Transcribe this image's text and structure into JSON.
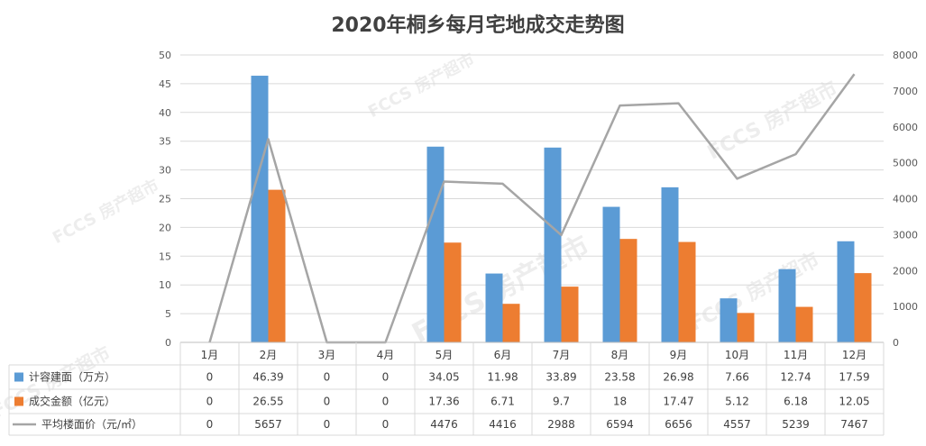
{
  "chart_data": {
    "type": "bar",
    "title": "2020年桐乡每月宅地成交走势图",
    "categories": [
      "1月",
      "2月",
      "3月",
      "4月",
      "5月",
      "6月",
      "7月",
      "8月",
      "9月",
      "10月",
      "11月",
      "12月"
    ],
    "series": [
      {
        "name": "计容建面（万方）",
        "type": "bar",
        "axis": "left",
        "color": "#5B9BD5",
        "values": [
          0,
          46.39,
          0,
          0,
          34.05,
          11.98,
          33.89,
          23.58,
          26.98,
          7.66,
          12.74,
          17.59
        ]
      },
      {
        "name": "成交金额（亿元）",
        "type": "bar",
        "axis": "left",
        "color": "#ED7D31",
        "values": [
          0,
          26.55,
          0,
          0,
          17.36,
          6.71,
          9.7,
          18,
          17.47,
          5.12,
          6.18,
          12.05
        ]
      },
      {
        "name": "平均楼面价（元/㎡）",
        "type": "line",
        "axis": "right",
        "color": "#A5A5A5",
        "values": [
          0,
          5657,
          0,
          0,
          4476,
          4416,
          2988,
          6594,
          6656,
          4557,
          5239,
          7467
        ]
      }
    ],
    "y_left": {
      "min": 0,
      "max": 50,
      "ticks": [
        "0",
        "5",
        "10",
        "15",
        "20",
        "25",
        "30",
        "35",
        "40",
        "45",
        "50"
      ]
    },
    "y_right": {
      "min": 0,
      "max": 8000,
      "ticks": [
        "0",
        "1000",
        "2000",
        "3000",
        "4000",
        "5000",
        "6000",
        "7000",
        "8000"
      ]
    },
    "grid": true,
    "legend": "data-table"
  },
  "table_rows": [
    [
      "0",
      "46.39",
      "0",
      "0",
      "34.05",
      "11.98",
      "33.89",
      "23.58",
      "26.98",
      "7.66",
      "12.74",
      "17.59"
    ],
    [
      "0",
      "26.55",
      "0",
      "0",
      "17.36",
      "6.71",
      "9.7",
      "18",
      "17.47",
      "5.12",
      "6.18",
      "12.05"
    ],
    [
      "0",
      "5657",
      "0",
      "0",
      "4476",
      "4416",
      "2988",
      "6594",
      "6656",
      "4557",
      "5239",
      "7467"
    ]
  ],
  "watermark": {
    "text": "FCCS 房产超市"
  }
}
